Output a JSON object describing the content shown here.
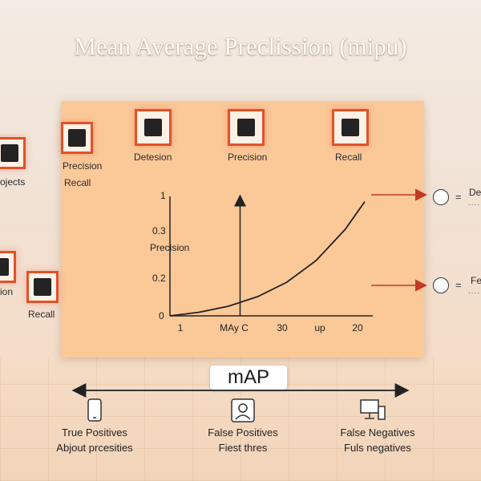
{
  "title": "Mean Average Preclission (mipu)",
  "top_labels": {
    "left_cut": "ojects",
    "precision_recall_1": "Precision",
    "precision_recall_2": "Recall",
    "detection": "Detesion",
    "precision": "Precision",
    "recall": "Recall",
    "left_cut_2": "ion",
    "recall_bottom": "Recall"
  },
  "chart_data": {
    "type": "line",
    "ylabel": "Precision",
    "y_ticks": [
      "1",
      "0.3",
      "0.2",
      "0"
    ],
    "x_ticks": [
      "1",
      "MAy C",
      "30",
      "up",
      "20"
    ],
    "series": [
      {
        "x": [
          0,
          0.15,
          0.3,
          0.45,
          0.6,
          0.75,
          0.9,
          1.0
        ],
        "y": [
          0,
          0.03,
          0.08,
          0.16,
          0.28,
          0.46,
          0.72,
          0.95
        ]
      }
    ],
    "vertical_marker_x": 0.36,
    "grid": false
  },
  "right_legend": {
    "item1_text": "De",
    "item2_text": "Fe",
    "equals": "=",
    "dots": "......",
    "arrow_color": "#c23a22"
  },
  "map_label": "mAP",
  "bottom_metrics": [
    {
      "icon": "phone-icon",
      "line1": "True Positives",
      "line2": "Abjout prcesities"
    },
    {
      "icon": "person-icon",
      "line1": "False Positives",
      "line2": "Fiest thres"
    },
    {
      "icon": "monitor-icon",
      "line1": "False Negatives",
      "line2": "Fuls negatives"
    }
  ],
  "colors": {
    "accent": "#e2512a",
    "panel": "#fbc898"
  }
}
